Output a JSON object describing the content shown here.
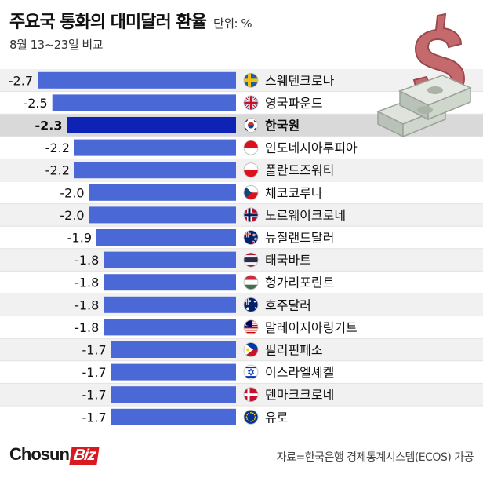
{
  "header": {
    "title": "주요국 통화의 대미달러 환율",
    "unit": "단위: %",
    "subtitle": "8월 13~23일 비교"
  },
  "footer": {
    "logo_main": "Chosun",
    "logo_accent": "Biz",
    "source": "자료=한국은행 경제통계시스템(ECOS) 가공"
  },
  "colors": {
    "bar": "#4a68d6",
    "highlight_bar": "#0e22b5",
    "highlight_row": "#d9d9d9",
    "row_alt": "#f1f1f1"
  },
  "chart_data": {
    "type": "bar",
    "orientation": "horizontal",
    "title": "주요국 통화의 대미달러 환율",
    "unit": "%",
    "highlight": "한국원",
    "categories": [
      "스웨덴크로나",
      "영국파운드",
      "한국원",
      "인도네시아루피아",
      "폴란드즈워티",
      "체코코루나",
      "노르웨이크로네",
      "뉴질랜드달러",
      "태국바트",
      "헝가리포린트",
      "호주달러",
      "말레이지아링기트",
      "필리핀페소",
      "이스라엘셰켈",
      "덴마크크로네",
      "유로"
    ],
    "values": [
      -2.7,
      -2.5,
      -2.3,
      -2.2,
      -2.2,
      -2.0,
      -2.0,
      -1.9,
      -1.8,
      -1.8,
      -1.8,
      -1.8,
      -1.7,
      -1.7,
      -1.7,
      -1.7
    ],
    "labels": [
      "-2.7",
      "-2.5",
      "-2.3",
      "-2.2",
      "-2.2",
      "-2.0",
      "-2.0",
      "-1.9",
      "-1.8",
      "-1.8",
      "-1.8",
      "-1.8",
      "-1.7",
      "-1.7",
      "-1.7",
      "-1.7"
    ],
    "flags": [
      "sweden-flag",
      "uk-flag",
      "korea-flag",
      "indonesia-flag",
      "poland-flag",
      "czech-flag",
      "norway-flag",
      "new-zealand-flag",
      "thailand-flag",
      "hungary-flag",
      "australia-flag",
      "malaysia-flag",
      "philippines-flag",
      "israel-flag",
      "denmark-flag",
      "eu-flag"
    ]
  }
}
